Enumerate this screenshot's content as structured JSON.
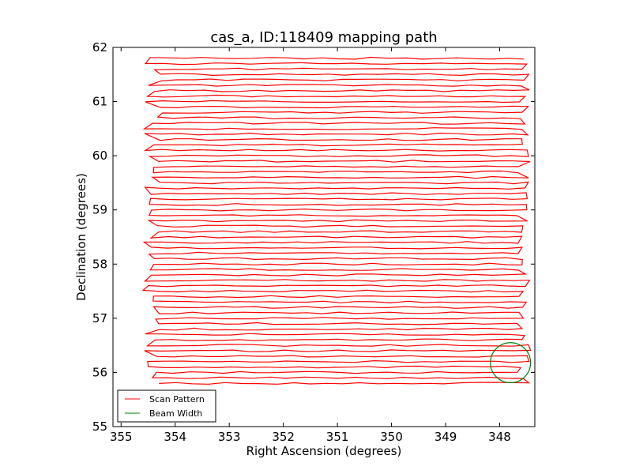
{
  "chart_data": {
    "type": "line",
    "title": "cas_a, ID:118409 mapping path",
    "xlabel": "Right Ascension (degrees)",
    "ylabel": "Declination (degrees)",
    "xlim": [
      355.15,
      347.35
    ],
    "ylim": [
      55,
      62
    ],
    "x_inverted": true,
    "xticks": [
      "355",
      "354",
      "353",
      "352",
      "351",
      "350",
      "349",
      "348"
    ],
    "yticks": [
      "55",
      "56",
      "57",
      "58",
      "59",
      "60",
      "61",
      "62"
    ],
    "grid": false,
    "legend_position": "lower-left",
    "series": [
      {
        "name": "Scan Pattern",
        "color": "#ff0000",
        "pattern": "boustrophedon raster",
        "ra_range": [
          347.7,
          354.2
        ],
        "dec_range": [
          55.8,
          61.8
        ],
        "row_spacing_deg": 0.1
      },
      {
        "name": "Beam Width",
        "color": "#008000",
        "shape": "circle",
        "center_ra": 347.8,
        "center_dec": 56.18,
        "radius_deg": 0.37
      }
    ]
  }
}
